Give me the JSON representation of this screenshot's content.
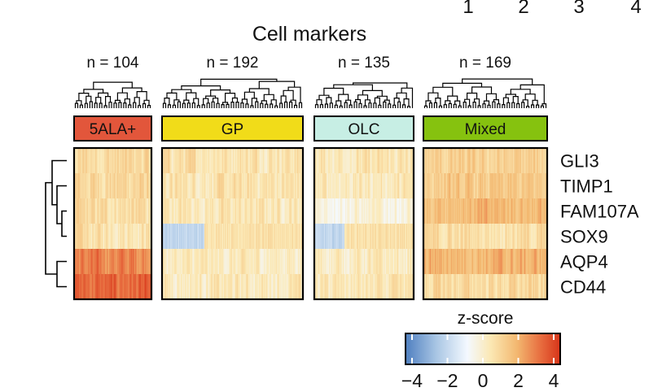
{
  "chart_data": {
    "type": "heatmap",
    "title": "Cell markers",
    "top_numbers": [
      "1",
      "2",
      "3",
      "4"
    ],
    "genes": [
      "GLI3",
      "TIMP1",
      "FAM107A",
      "SOX9",
      "AQP4",
      "CD44"
    ],
    "groups": [
      {
        "label": "5ALA+",
        "n_label": "n = 104",
        "n": 104,
        "color": "#e2563b",
        "mean_z": [
          0.8,
          0.9,
          0.7,
          0.6,
          2.6,
          3.0
        ]
      },
      {
        "label": "GP",
        "n_label": "n = 192",
        "n": 192,
        "color": "#f1dc19",
        "mean_z": [
          0.6,
          0.5,
          0.4,
          -1.0,
          0.2,
          0.3
        ]
      },
      {
        "label": "OLC",
        "n_label": "n = 135",
        "n": 135,
        "color": "#c7eee4",
        "mean_z": [
          0.4,
          0.3,
          -0.2,
          -1.1,
          0.2,
          0.3
        ]
      },
      {
        "label": "Mixed",
        "n_label": "n = 169",
        "n": 169,
        "color": "#86c20f",
        "mean_z": [
          1.0,
          1.2,
          1.7,
          0.7,
          1.8,
          0.8
        ]
      }
    ],
    "legend": {
      "title": "z-score",
      "range": [
        -4,
        4
      ],
      "ticks": [
        "−4",
        "−2",
        "0",
        "2",
        "4"
      ],
      "colors": [
        "#4f7fc0",
        "#f8fbff",
        "#fbe8b4",
        "#f3b870",
        "#d7351a"
      ]
    },
    "row_dendrogram": true,
    "column_dendrograms": true
  }
}
